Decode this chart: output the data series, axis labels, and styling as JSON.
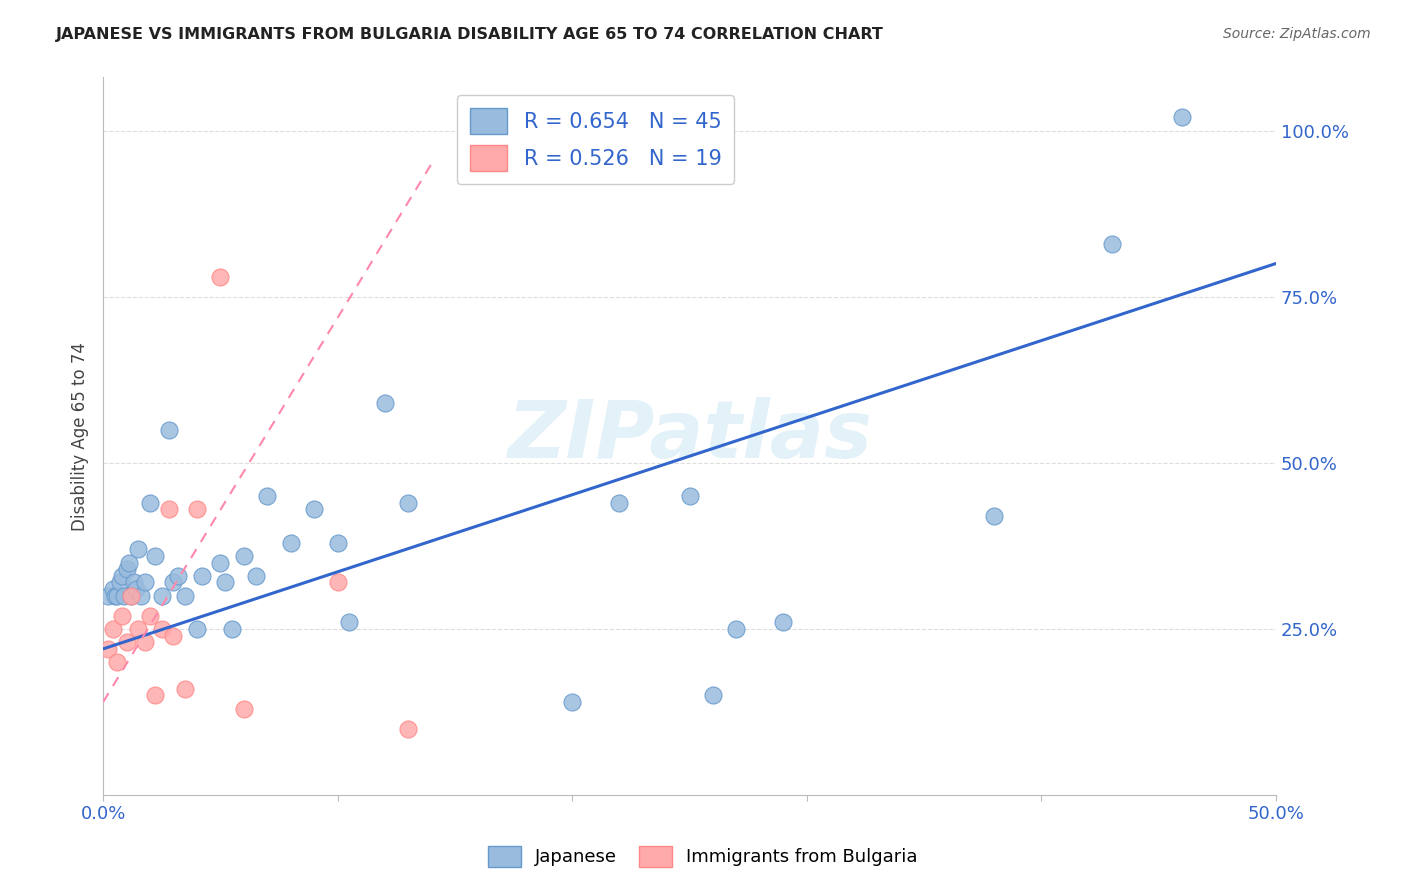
{
  "title": "JAPANESE VS IMMIGRANTS FROM BULGARIA DISABILITY AGE 65 TO 74 CORRELATION CHART",
  "source": "Source: ZipAtlas.com",
  "ylabel": "Disability Age 65 to 74",
  "xlim": [
    0.0,
    0.5
  ],
  "ylim": [
    0.0,
    1.08
  ],
  "xticks": [
    0.0,
    0.1,
    0.2,
    0.3,
    0.4,
    0.5
  ],
  "xticklabels_show": [
    "0.0%",
    "",
    "",
    "",
    "",
    "50.0%"
  ],
  "yticks": [
    0.25,
    0.5,
    0.75,
    1.0
  ],
  "yticklabels": [
    "25.0%",
    "50.0%",
    "75.0%",
    "100.0%"
  ],
  "watermark": "ZIPatlas",
  "legend_r1": "R = 0.654",
  "legend_n1": "N = 45",
  "legend_r2": "R = 0.526",
  "legend_n2": "N = 19",
  "blue_color": "#99BBDD",
  "pink_color": "#FFAAAA",
  "blue_scatter_edge": "#6699CC",
  "pink_scatter_edge": "#FF8888",
  "blue_line_color": "#3366CC",
  "pink_line_color": "#FF88AA",
  "tick_color": "#3366CC",
  "title_color": "#222222",
  "source_color": "#666666",
  "grid_color": "#DDDDDD",
  "watermark_color": "#BBDDEE",
  "japanese_x": [
    0.002,
    0.004,
    0.005,
    0.006,
    0.007,
    0.008,
    0.009,
    0.01,
    0.011,
    0.012,
    0.013,
    0.014,
    0.015,
    0.016,
    0.018,
    0.02,
    0.022,
    0.025,
    0.028,
    0.03,
    0.032,
    0.035,
    0.04,
    0.042,
    0.05,
    0.052,
    0.055,
    0.06,
    0.065,
    0.07,
    0.08,
    0.09,
    0.1,
    0.105,
    0.12,
    0.13,
    0.2,
    0.22,
    0.25,
    0.26,
    0.27,
    0.29,
    0.38,
    0.43,
    0.46
  ],
  "japanese_y": [
    0.3,
    0.31,
    0.3,
    0.3,
    0.32,
    0.33,
    0.3,
    0.34,
    0.35,
    0.3,
    0.32,
    0.31,
    0.37,
    0.3,
    0.32,
    0.44,
    0.36,
    0.3,
    0.55,
    0.32,
    0.33,
    0.3,
    0.25,
    0.33,
    0.35,
    0.32,
    0.25,
    0.36,
    0.33,
    0.45,
    0.38,
    0.43,
    0.38,
    0.26,
    0.59,
    0.44,
    0.14,
    0.44,
    0.45,
    0.15,
    0.25,
    0.26,
    0.42,
    0.83,
    1.02
  ],
  "bulgaria_x": [
    0.002,
    0.004,
    0.006,
    0.008,
    0.01,
    0.012,
    0.015,
    0.018,
    0.02,
    0.022,
    0.025,
    0.028,
    0.03,
    0.035,
    0.04,
    0.05,
    0.06,
    0.1,
    0.13
  ],
  "bulgaria_y": [
    0.22,
    0.25,
    0.2,
    0.27,
    0.23,
    0.3,
    0.25,
    0.23,
    0.27,
    0.15,
    0.25,
    0.43,
    0.24,
    0.16,
    0.43,
    0.78,
    0.13,
    0.32,
    0.1
  ],
  "blue_line_x": [
    0.0,
    0.5
  ],
  "blue_line_y": [
    0.22,
    0.8
  ],
  "pink_line_x": [
    0.0,
    0.14
  ],
  "pink_line_y": [
    0.14,
    0.95
  ]
}
